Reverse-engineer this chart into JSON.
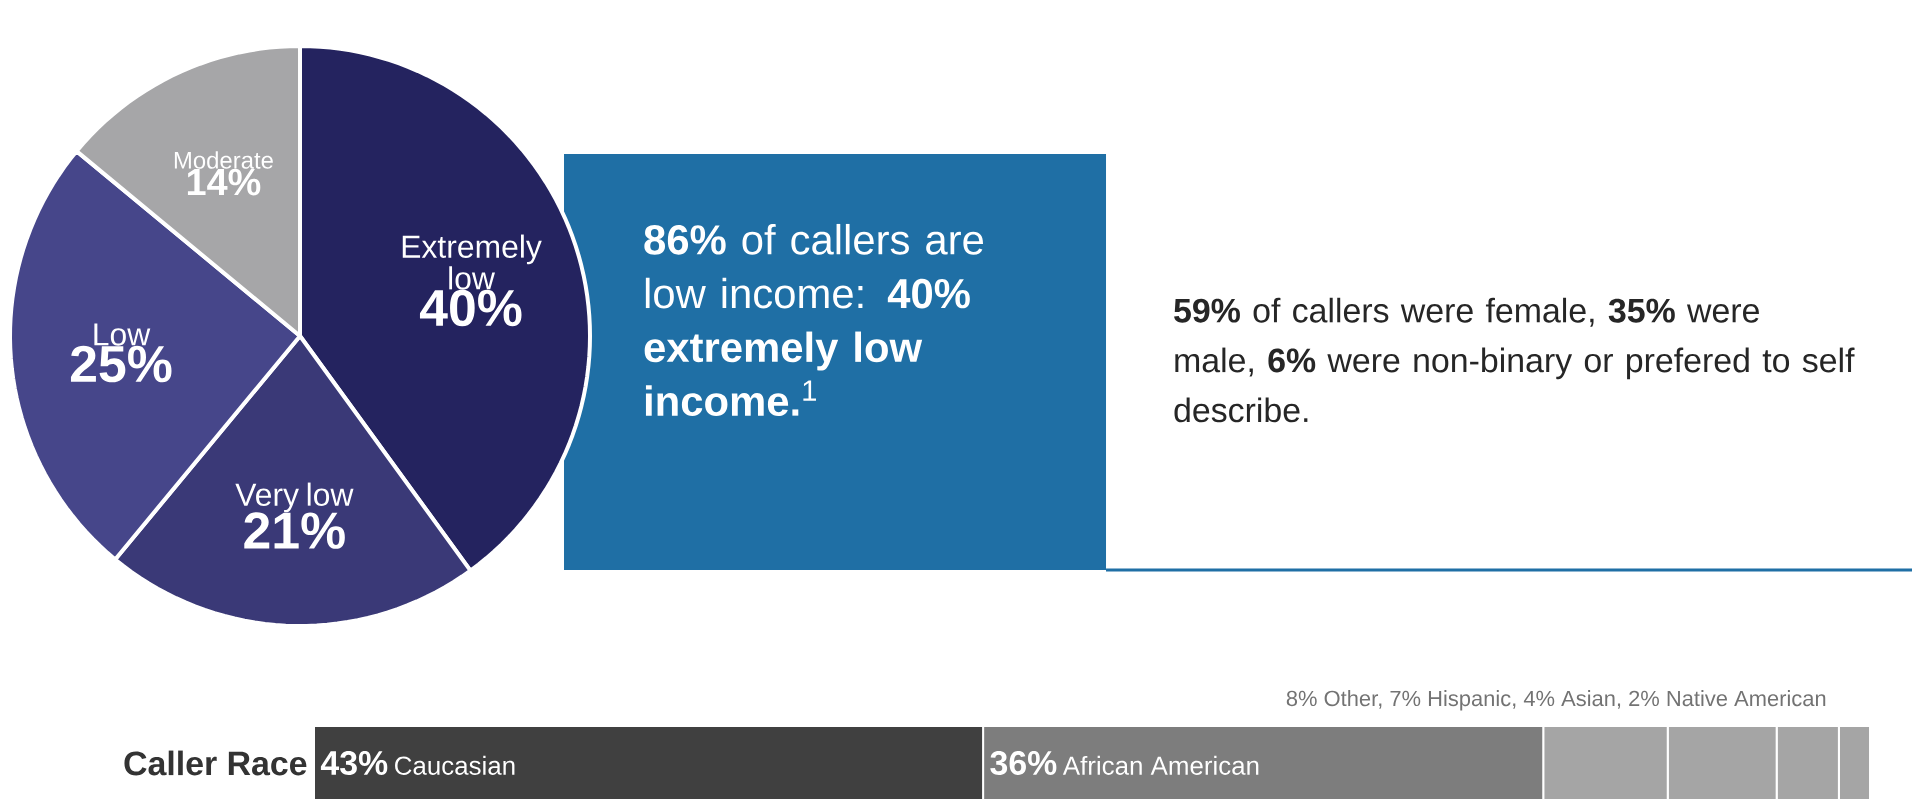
{
  "chart_data": [
    {
      "type": "pie",
      "categories": [
        "Extremely low",
        "Very low",
        "Low",
        "Moderate"
      ],
      "values": [
        40,
        21,
        25,
        14
      ],
      "value_labels": [
        "40%",
        "21%",
        "25%",
        "14%"
      ],
      "colors": [
        "#24235f",
        "#3a3977",
        "#46468a",
        "#a6a6a8"
      ]
    },
    {
      "type": "other",
      "annotations": [
        "**86%** of callers are low income: **40% extremely low income.**$^{1}$",
        "**59%** of callers were female, **35%** were male, **6%** were non-binary or prefered to self describe."
      ]
    },
    {
      "type": "bar",
      "orientation": "horizontal",
      "stacked": true,
      "title": "Caller Race",
      "categories": [
        null
      ],
      "tick_labels": false,
      "series": [
        {
          "name": "Caucasian",
          "color": "#404040",
          "values": [
            43
          ],
          "value_labels": [
            "43%"
          ]
        },
        {
          "name": "African American",
          "color": "#7d7d7d",
          "values": [
            36
          ],
          "value_labels": [
            "36%"
          ]
        },
        {
          "color": "#a5a5a5",
          "values": [
            8
          ]
        },
        {
          "color": "#a5a5a5",
          "values": [
            7
          ]
        },
        {
          "color": "#a5a5a5",
          "values": [
            4
          ]
        },
        {
          "color": "#a5a5a5",
          "values": [
            2
          ]
        }
      ],
      "annotations": [
        "8% Other, 7% Hispanic, 4% Asian, 2% Native American"
      ]
    }
  ]
}
